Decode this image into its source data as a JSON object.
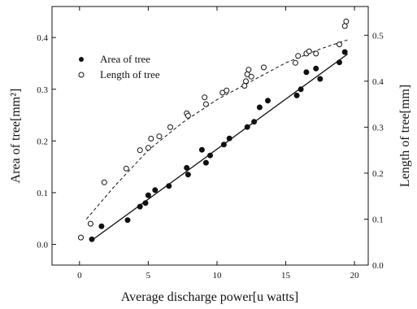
{
  "chart_data": {
    "type": "scatter",
    "xlabel": "Average discharge power[u watts]",
    "ylabel_left": "Area of tree[mm²]",
    "ylabel_right": "Length of tree[mm]",
    "xlim": [
      -2,
      21
    ],
    "ylim_left": [
      -0.04,
      0.46
    ],
    "ylim_right": [
      0.0,
      0.5625
    ],
    "x_ticks": [
      0,
      5,
      10,
      15,
      20
    ],
    "y_left_ticks": [
      0.0,
      0.1,
      0.2,
      0.3,
      0.4
    ],
    "y_left_tick_labels": [
      "0.0",
      "0.1",
      "0.2",
      "0.3",
      "0.4"
    ],
    "y_right_ticks": [
      0.0,
      0.1,
      0.2,
      0.3,
      0.4,
      0.5
    ],
    "y_right_tick_labels": [
      "0.0",
      "0.1",
      "0.2",
      "0.3",
      "0.4",
      "0.5"
    ],
    "grid": false,
    "legend_position": "top-left",
    "series": [
      {
        "name": "Area of tree",
        "marker": "filled-circle",
        "axis": "left",
        "color": "#111111",
        "x": [
          0.9,
          1.6,
          3.5,
          4.4,
          4.8,
          5.0,
          5.5,
          6.5,
          7.8,
          7.9,
          8.9,
          9.2,
          9.5,
          10.5,
          10.9,
          12.2,
          12.7,
          13.1,
          13.7,
          15.8,
          16.1,
          16.5,
          17.2,
          17.5,
          18.9,
          19.3
        ],
        "y": [
          0.01,
          0.035,
          0.047,
          0.073,
          0.08,
          0.095,
          0.105,
          0.113,
          0.148,
          0.135,
          0.183,
          0.158,
          0.172,
          0.193,
          0.205,
          0.227,
          0.237,
          0.265,
          0.278,
          0.288,
          0.3,
          0.333,
          0.34,
          0.32,
          0.352,
          0.372
        ]
      },
      {
        "name": "Length of tree",
        "marker": "open-circle",
        "axis": "right",
        "color": "#111111",
        "x": [
          0.1,
          0.8,
          1.8,
          3.4,
          4.4,
          5.0,
          5.2,
          5.8,
          6.6,
          7.8,
          7.9,
          9.1,
          9.2,
          10.4,
          10.7,
          12.0,
          12.1,
          12.2,
          12.3,
          12.5,
          13.4,
          15.7,
          15.9,
          16.5,
          16.7,
          17.2,
          18.9,
          19.3,
          19.4
        ],
        "y": [
          0.06,
          0.09,
          0.18,
          0.21,
          0.25,
          0.255,
          0.275,
          0.28,
          0.3,
          0.33,
          0.325,
          0.365,
          0.35,
          0.375,
          0.38,
          0.39,
          0.4,
          0.415,
          0.425,
          0.41,
          0.43,
          0.44,
          0.455,
          0.46,
          0.465,
          0.46,
          0.48,
          0.52,
          0.53
        ]
      }
    ],
    "fit_lines": [
      {
        "for": "Area of tree",
        "axis": "left",
        "style": "solid",
        "x": [
          0.9,
          19.5
        ],
        "y": [
          0.008,
          0.368
        ]
      },
      {
        "for": "Length of tree",
        "axis": "right",
        "style": "dashed",
        "x": [
          0.5,
          2.5,
          5.0,
          7.5,
          10.0,
          12.5,
          15.0,
          17.5,
          19.5
        ],
        "y": [
          0.1,
          0.17,
          0.25,
          0.31,
          0.36,
          0.4,
          0.44,
          0.47,
          0.49
        ]
      }
    ]
  }
}
